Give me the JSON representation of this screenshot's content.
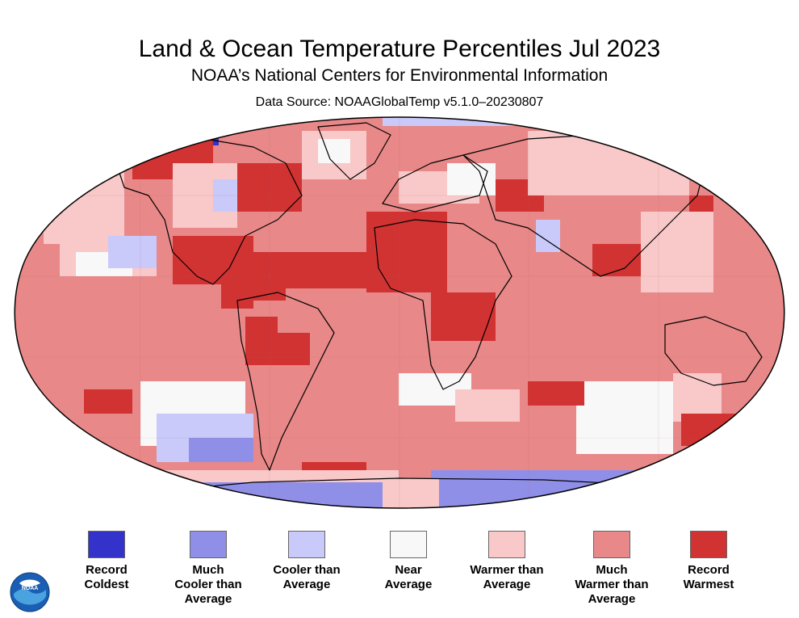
{
  "header": {
    "title": "Land & Ocean Temperature Percentiles Jul 2023",
    "subtitle": "NOAA’s National Centers for Environmental Information",
    "source": "Data Source: NOAAGlobalTemp v5.1.0–20230807"
  },
  "legend": [
    {
      "label": "Record\nColdest",
      "color": "#3333cc"
    },
    {
      "label": "Much\nCooler than\nAverage",
      "color": "#8f8fe8"
    },
    {
      "label": "Cooler than\nAverage",
      "color": "#c9c9fa"
    },
    {
      "label": "Near\nAverage",
      "color": "#f8f8f8"
    },
    {
      "label": "Warmer than\nAverage",
      "color": "#f9c8c8"
    },
    {
      "label": "Much\nWarmer than\nAverage",
      "color": "#e88888"
    },
    {
      "label": "Record\nWarmest",
      "color": "#d13232"
    }
  ],
  "logo": {
    "text": "NOAA",
    "icon": "noaa-logo-icon"
  }
}
